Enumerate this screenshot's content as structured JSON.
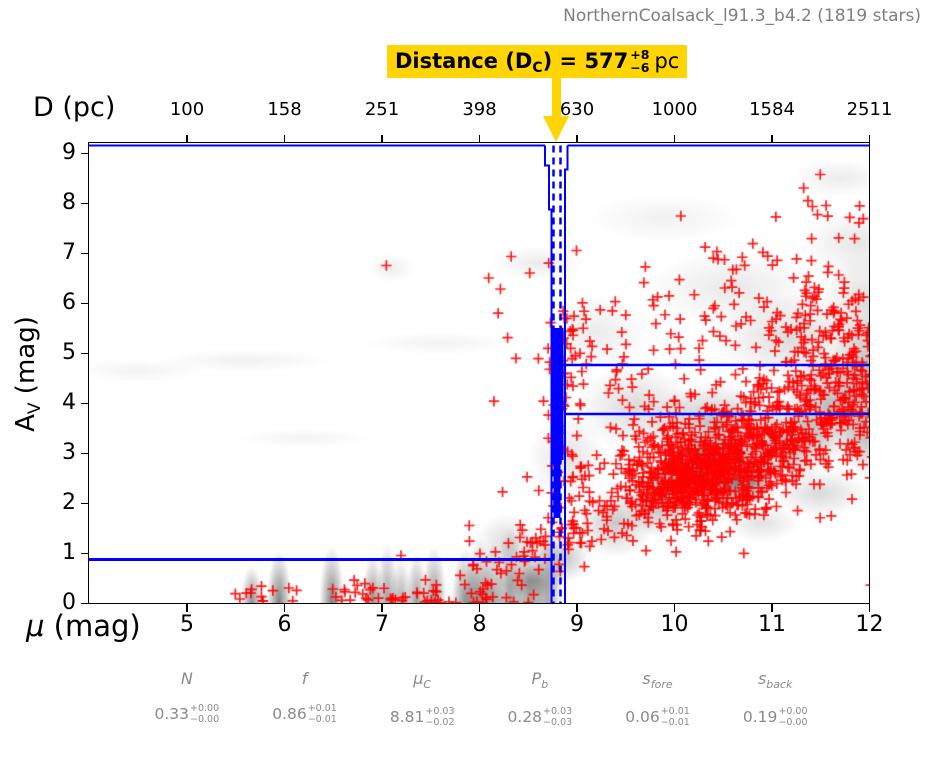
{
  "title": "NorthernCoalsack_l91.3_b4.2 (1819 stars)",
  "annotation": {
    "prefix": "Distance (D",
    "sub": "C",
    "equals": ") = ",
    "value": "577",
    "plus": "+8",
    "minus": "−6",
    "unit": "pc"
  },
  "axes": {
    "top": {
      "label": "D (pc)",
      "ticks": [
        "100",
        "158",
        "251",
        "398",
        "630",
        "1000",
        "1584",
        "2511"
      ]
    },
    "bottom": {
      "symbol": "μ",
      "rest": " (mag)",
      "ticks": [
        "5",
        "6",
        "7",
        "8",
        "9",
        "10",
        "11",
        "12"
      ]
    },
    "left": {
      "main": "A",
      "sub": "V",
      "rest": " (mag)",
      "ticks": [
        "0",
        "1",
        "2",
        "3",
        "4",
        "5",
        "6",
        "7",
        "8",
        "9"
      ]
    }
  },
  "stats": {
    "items": [
      {
        "label": {
          "main": "N",
          "sub": ""
        },
        "value": {
          "main": "0.33",
          "plus": "+0.00",
          "minus": "−0.00"
        }
      },
      {
        "label": {
          "main": "f",
          "sub": ""
        },
        "value": {
          "main": "0.86",
          "plus": "+0.01",
          "minus": "−0.01"
        }
      },
      {
        "label": {
          "main": "μ",
          "sub": "C"
        },
        "value": {
          "main": "8.81",
          "plus": "+0.03",
          "minus": "−0.02"
        }
      },
      {
        "label": {
          "main": "P",
          "sub": "b"
        },
        "value": {
          "main": "0.28",
          "plus": "+0.03",
          "minus": "−0.03"
        }
      },
      {
        "label": {
          "main": "s",
          "sub": "fore"
        },
        "value": {
          "main": "0.06",
          "plus": "+0.01",
          "minus": "−0.01"
        }
      },
      {
        "label": {
          "main": "s",
          "sub": "back"
        },
        "value": {
          "main": "0.19",
          "plus": "+0.00",
          "minus": "−0.00"
        }
      }
    ]
  },
  "colors": {
    "model_blue": "#0000ff",
    "marker_red": "#ff0000",
    "highlight_yellow": "#ffd400",
    "title_gray": "#7f7f7f",
    "stats_gray": "#8a8a8a"
  },
  "chart_data": {
    "type": "scatter",
    "title": "NorthernCoalsack_l91.3_b4.2 (1819 stars)",
    "n_stars": 1819,
    "xlabel": "μ (mag)",
    "ylabel": "A_V (mag)",
    "top_axis_label": "D (pc)",
    "xlim": [
      4,
      12
    ],
    "ylim": [
      0,
      9.2
    ],
    "x_ticks": [
      5,
      6,
      7,
      8,
      9,
      10,
      11,
      12
    ],
    "top_ticks_pc": [
      100,
      158,
      251,
      398,
      630,
      1000,
      1584,
      2511
    ],
    "y_ticks": [
      0,
      1,
      2,
      3,
      4,
      5,
      6,
      7,
      8,
      9
    ],
    "grid": false,
    "model": {
      "foreground_av": 0.87,
      "cloud_mu": 8.81,
      "cloud_distance_pc": 577,
      "distance_err_plus_pc": 8,
      "distance_err_minus_pc": 6,
      "cloud_mu_dashed_16_84": [
        8.765,
        8.835
      ],
      "cloud_mu_solid_envelope": [
        8.72,
        8.91
      ],
      "background_av_lines": [
        4.76,
        3.78
      ],
      "jump_dense_av_range": [
        2.9,
        5.6
      ]
    },
    "posterior_params": {
      "N": {
        "value": 0.33,
        "plus": 0.0,
        "minus": 0.0
      },
      "f": {
        "value": 0.86,
        "plus": 0.01,
        "minus": 0.01
      },
      "mu_C": {
        "value": 8.81,
        "plus": 0.03,
        "minus": 0.02
      },
      "P_b": {
        "value": 0.28,
        "plus": 0.03,
        "minus": 0.03
      },
      "s_fore": {
        "value": 0.06,
        "plus": 0.01,
        "minus": 0.01
      },
      "s_back": {
        "value": 0.19,
        "plus": 0.0,
        "minus": 0.0
      }
    },
    "scatter_clusters": [
      {
        "mu": 10.5,
        "av": 2.75,
        "sx": 0.45,
        "sy": 0.5,
        "n": 520,
        "corr": 0.25
      },
      {
        "mu": 10.15,
        "av": 2.35,
        "sx": 0.35,
        "sy": 0.45,
        "n": 220,
        "corr": 0.1
      },
      {
        "mu": 11.3,
        "av": 3.9,
        "sx": 0.5,
        "sy": 0.7,
        "n": 300,
        "corr": 0.35
      },
      {
        "mu": 11.85,
        "av": 4.6,
        "sx": 0.3,
        "sy": 1.0,
        "n": 170,
        "corr": 0.0
      },
      {
        "mu": 9.75,
        "av": 2.9,
        "sx": 0.45,
        "sy": 0.85,
        "n": 140,
        "corr": 0.3
      },
      {
        "mu": 10.9,
        "av": 5.7,
        "sx": 0.7,
        "sy": 0.65,
        "n": 90,
        "corr": 0.0
      },
      {
        "mu": 11.3,
        "av": 7.0,
        "sx": 0.5,
        "sy": 0.55,
        "n": 30,
        "corr": 0.0
      },
      {
        "mu": 8.85,
        "av": 4.0,
        "sx": 0.12,
        "sy": 0.9,
        "n": 55,
        "corr": 0.0
      },
      {
        "mu": 9.3,
        "av": 5.0,
        "sx": 0.4,
        "sy": 0.8,
        "n": 40,
        "corr": 0.0
      }
    ],
    "scatter_branch": {
      "from": [
        7.85,
        0.3
      ],
      "to": [
        9.35,
        1.85
      ],
      "n": 95,
      "jitter": [
        0.17,
        0.28
      ]
    },
    "scatter_foreground": {
      "mu_range": [
        5.5,
        8.6
      ],
      "av_halfnormal_scale": 0.22,
      "n": 55
    },
    "outliers": [
      [
        7.05,
        6.75
      ],
      [
        8.1,
        6.5
      ],
      [
        8.33,
        6.93
      ],
      [
        8.22,
        6.28
      ],
      [
        8.52,
        6.6
      ],
      [
        11.5,
        8.57
      ],
      [
        11.33,
        8.3
      ],
      [
        11.42,
        7.93
      ],
      [
        11.56,
        7.95
      ],
      [
        10.07,
        7.74
      ],
      [
        9.0,
        7.05
      ],
      [
        6.05,
        0.3
      ],
      [
        5.66,
        0.2
      ],
      [
        6.5,
        0.28
      ],
      [
        7.2,
        0.95
      ],
      [
        7.9,
        1.55
      ]
    ],
    "density_blobs": [
      [
        10.45,
        2.65,
        0.55,
        0.85,
        0.5
      ],
      [
        10.3,
        2.8,
        0.3,
        0.5,
        0.45
      ],
      [
        10.75,
        2.45,
        0.35,
        0.55,
        0.4
      ],
      [
        10.05,
        2.35,
        0.3,
        0.6,
        0.35
      ],
      [
        9.85,
        2.0,
        0.35,
        0.7,
        0.28
      ],
      [
        11.15,
        3.2,
        0.5,
        0.8,
        0.32
      ],
      [
        11.6,
        3.9,
        0.5,
        1.1,
        0.28
      ],
      [
        12.0,
        4.6,
        0.4,
        1.2,
        0.3
      ],
      [
        10.4,
        3.6,
        0.7,
        0.8,
        0.25
      ],
      [
        9.4,
        1.6,
        0.4,
        0.7,
        0.22
      ],
      [
        8.85,
        0.9,
        0.3,
        0.5,
        0.25
      ],
      [
        8.3,
        1.2,
        0.35,
        0.6,
        0.15
      ],
      [
        9.6,
        3.9,
        0.6,
        0.9,
        0.15
      ],
      [
        11.2,
        5.3,
        0.8,
        0.9,
        0.14
      ],
      [
        12.0,
        6.0,
        0.5,
        1.0,
        0.15
      ],
      [
        10.6,
        6.3,
        0.9,
        0.8,
        0.09
      ],
      [
        11.9,
        7.2,
        0.6,
        0.7,
        0.1
      ],
      [
        11.7,
        8.5,
        0.5,
        0.4,
        0.08
      ],
      [
        9.2,
        5.4,
        0.6,
        0.8,
        0.08
      ],
      [
        9.9,
        7.7,
        0.8,
        0.5,
        0.06
      ],
      [
        8.6,
        6.8,
        0.5,
        0.35,
        0.08
      ],
      [
        7.1,
        6.7,
        0.25,
        0.3,
        0.07
      ],
      [
        5.6,
        4.85,
        0.9,
        0.25,
        0.06
      ],
      [
        4.5,
        4.65,
        0.7,
        0.25,
        0.05
      ],
      [
        6.2,
        3.3,
        0.7,
        0.2,
        0.05
      ],
      [
        7.6,
        5.2,
        0.8,
        0.25,
        0.05
      ],
      [
        8.9,
        2.9,
        0.4,
        0.9,
        0.12
      ],
      [
        8.55,
        0.45,
        0.35,
        0.35,
        0.25
      ],
      [
        12.0,
        3.3,
        0.3,
        0.8,
        0.25
      ],
      [
        11.5,
        2.2,
        0.5,
        0.5,
        0.15
      ],
      [
        10.9,
        1.6,
        0.4,
        0.4,
        0.12
      ]
    ],
    "bottom_streaks": [
      [
        5.67,
        0.75,
        0.45,
        0.07
      ],
      [
        5.95,
        1.05,
        0.5,
        0.08
      ],
      [
        6.49,
        1.15,
        0.5,
        0.08
      ],
      [
        6.91,
        0.95,
        0.45,
        0.07
      ],
      [
        7.06,
        1.2,
        0.4,
        0.07
      ],
      [
        7.2,
        0.9,
        0.35,
        0.07
      ],
      [
        7.36,
        1.0,
        0.4,
        0.07
      ],
      [
        7.54,
        1.15,
        0.45,
        0.08
      ],
      [
        7.86,
        1.1,
        0.45,
        0.09
      ],
      [
        8.0,
        1.3,
        0.45,
        0.09
      ],
      [
        8.14,
        1.2,
        0.4,
        0.08
      ],
      [
        8.32,
        1.5,
        0.4,
        0.1
      ],
      [
        8.52,
        1.4,
        0.4,
        0.1
      ],
      [
        8.7,
        1.6,
        0.35,
        0.1
      ]
    ]
  }
}
